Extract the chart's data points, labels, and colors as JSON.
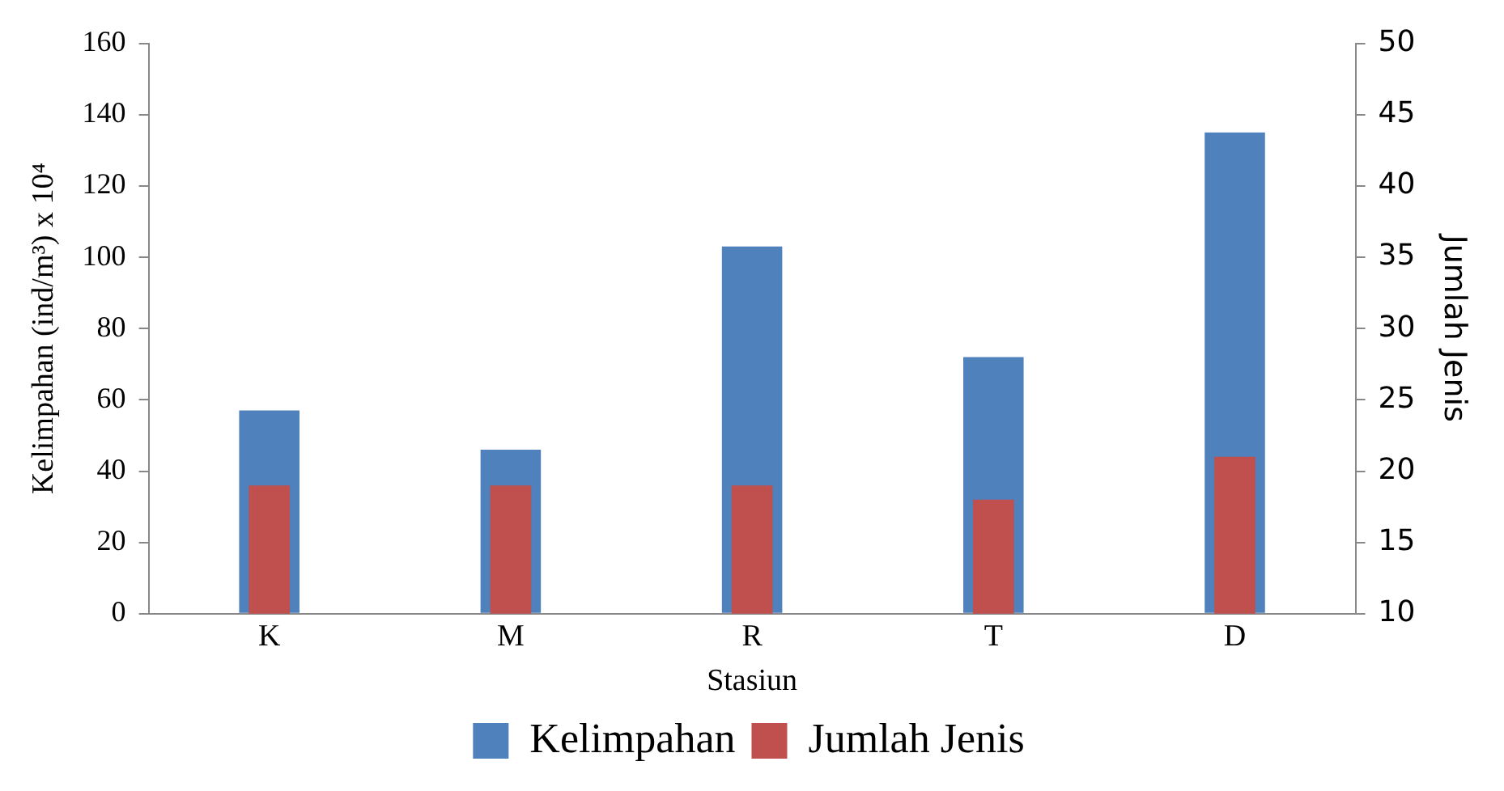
{
  "chart_data": {
    "type": "bar",
    "xlabel": "Stasiun",
    "ylabel": "Kelimpahan (ind/m³) x 10⁴",
    "y2label": "Jumlah Jenis",
    "categories": [
      "K",
      "M",
      "R",
      "T",
      "D"
    ],
    "series": [
      {
        "name": "Kelimpahan",
        "color": "#4f81bd",
        "values": [
          57,
          46,
          103,
          72,
          135
        ]
      },
      {
        "name": "Jumlah Jenis",
        "color": "#c0504d",
        "values": [
          19,
          19,
          19,
          18,
          21
        ],
        "axis": "y2"
      }
    ],
    "ylim": [
      0,
      160
    ],
    "yticks": [
      0,
      20,
      40,
      60,
      80,
      100,
      120,
      140,
      160
    ],
    "y2lim": [
      10,
      50
    ],
    "y2ticks": [
      10,
      15,
      20,
      25,
      30,
      35,
      40,
      45,
      50
    ],
    "grid": false,
    "legend": "bottom"
  }
}
